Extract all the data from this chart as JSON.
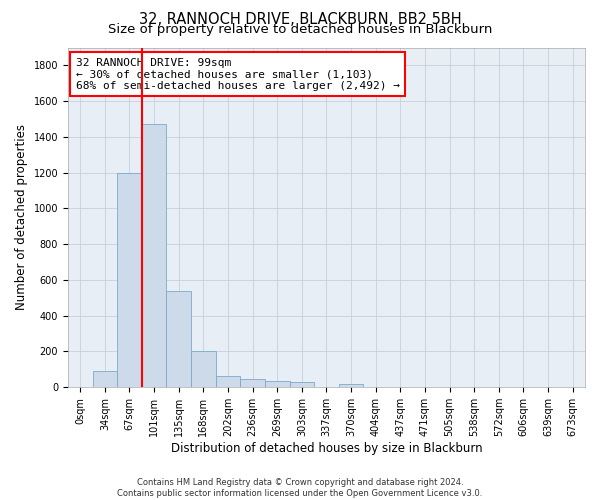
{
  "title": "32, RANNOCH DRIVE, BLACKBURN, BB2 5BH",
  "subtitle": "Size of property relative to detached houses in Blackburn",
  "xlabel": "Distribution of detached houses by size in Blackburn",
  "ylabel": "Number of detached properties",
  "footer_line1": "Contains HM Land Registry data © Crown copyright and database right 2024.",
  "footer_line2": "Contains public sector information licensed under the Open Government Licence v3.0.",
  "bar_labels": [
    "0sqm",
    "34sqm",
    "67sqm",
    "101sqm",
    "135sqm",
    "168sqm",
    "202sqm",
    "236sqm",
    "269sqm",
    "303sqm",
    "337sqm",
    "370sqm",
    "404sqm",
    "437sqm",
    "471sqm",
    "505sqm",
    "538sqm",
    "572sqm",
    "606sqm",
    "639sqm",
    "673sqm"
  ],
  "bar_values": [
    0,
    90,
    1200,
    1470,
    540,
    205,
    65,
    45,
    35,
    28,
    0,
    18,
    0,
    0,
    0,
    0,
    0,
    0,
    0,
    0,
    0
  ],
  "bar_color": "#cddaea",
  "bar_edge_color": "#7aaac8",
  "ylim": [
    0,
    1900
  ],
  "yticks": [
    0,
    200,
    400,
    600,
    800,
    1000,
    1200,
    1400,
    1600,
    1800
  ],
  "property_line_x": 2.5,
  "annotation_text_line1": "32 RANNOCH DRIVE: 99sqm",
  "annotation_text_line2": "← 30% of detached houses are smaller (1,103)",
  "annotation_text_line3": "68% of semi-detached houses are larger (2,492) →",
  "bg_color": "#e8eef5",
  "grid_color": "#c8d0da",
  "title_fontsize": 10.5,
  "subtitle_fontsize": 9.5,
  "axis_label_fontsize": 8.5,
  "tick_fontsize": 7,
  "annotation_fontsize": 8,
  "footer_fontsize": 6
}
